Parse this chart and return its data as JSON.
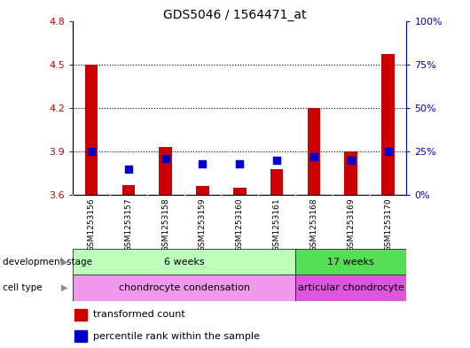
{
  "title": "GDS5046 / 1564471_at",
  "samples": [
    "GSM1253156",
    "GSM1253157",
    "GSM1253158",
    "GSM1253159",
    "GSM1253160",
    "GSM1253161",
    "GSM1253168",
    "GSM1253169",
    "GSM1253170"
  ],
  "transformed_count": [
    4.5,
    3.67,
    3.93,
    3.66,
    3.65,
    3.78,
    4.2,
    3.9,
    4.57
  ],
  "percentile_rank": [
    25,
    15,
    21,
    18,
    18,
    20,
    22,
    20,
    25
  ],
  "ylim": [
    3.6,
    4.8
  ],
  "y_ticks": [
    3.6,
    3.9,
    4.2,
    4.5,
    4.8
  ],
  "right_yticks": [
    0,
    25,
    50,
    75,
    100
  ],
  "right_ylim": [
    0,
    100
  ],
  "bar_color": "#cc0000",
  "dot_color": "#0000cc",
  "bg_color": "#ffffff",
  "plot_bg": "#ffffff",
  "tick_bg_color": "#cccccc",
  "dev_stage_groups": [
    {
      "label": "6 weeks",
      "start": 0,
      "end": 6,
      "color": "#bbffbb"
    },
    {
      "label": "17 weeks",
      "start": 6,
      "end": 9,
      "color": "#55dd55"
    }
  ],
  "cell_type_groups": [
    {
      "label": "chondrocyte condensation",
      "start": 0,
      "end": 6,
      "color": "#ee99ee"
    },
    {
      "label": "articular chondrocyte",
      "start": 6,
      "end": 9,
      "color": "#dd55dd"
    }
  ],
  "legend_items": [
    {
      "color": "#cc0000",
      "label": "transformed count"
    },
    {
      "color": "#0000cc",
      "label": "percentile rank within the sample"
    }
  ],
  "left_label_color": "#cc0000",
  "right_label_color": "#0000cc",
  "bar_width": 0.35,
  "dot_size": 28
}
